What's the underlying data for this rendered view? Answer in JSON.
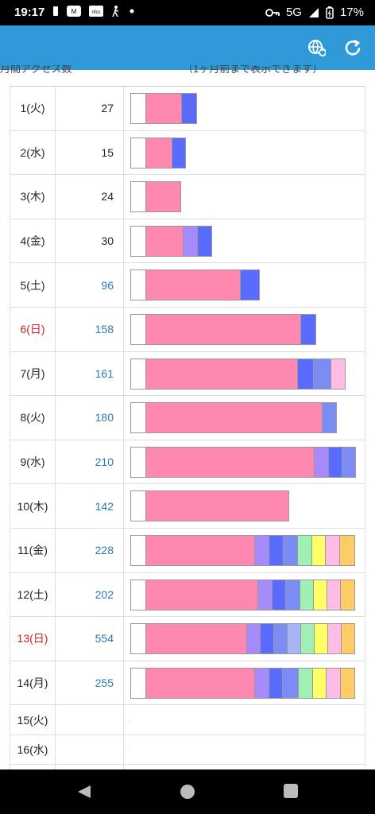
{
  "status_bar": {
    "time": "19:17",
    "network": "5G",
    "battery": "17%",
    "left_icons": [
      "notification-icon",
      "app-icon",
      "app-icon",
      "walk-icon",
      "dot-icon"
    ],
    "right_icons": [
      "key-icon",
      "signal-icon",
      "battery-icon"
    ]
  },
  "app_bar": {
    "color": "#2e9bd8",
    "actions": [
      "globe-refresh-icon",
      "reload-icon"
    ]
  },
  "header_strip": {
    "left_text": "月間アクセス数",
    "right_text": "（1ヶ月前まで表示できます）"
  },
  "segment_colors": {
    "white": "#ffffff",
    "pink": "#ff88b0",
    "violet": "#a78bfa",
    "blue": "#5a6bff",
    "periwinkle": "#7b8cf5",
    "lavender": "#a9b4f5",
    "mint": "#9ff0b4",
    "yellow": "#ffff66",
    "light-pink": "#ffbde6",
    "orange": "#ffcc66"
  },
  "rows": [
    {
      "day": "1(火)",
      "count": "27",
      "is_link": false,
      "is_sunday": false,
      "segments": [
        [
          "white",
          20
        ],
        [
          "pink",
          46
        ],
        [
          "blue",
          20
        ]
      ]
    },
    {
      "day": "2(水)",
      "count": "15",
      "is_link": false,
      "is_sunday": false,
      "segments": [
        [
          "white",
          20
        ],
        [
          "pink",
          34
        ],
        [
          "blue",
          18
        ]
      ]
    },
    {
      "day": "3(木)",
      "count": "24",
      "is_link": false,
      "is_sunday": false,
      "segments": [
        [
          "white",
          20
        ],
        [
          "pink",
          45
        ]
      ]
    },
    {
      "day": "4(金)",
      "count": "30",
      "is_link": false,
      "is_sunday": false,
      "segments": [
        [
          "white",
          20
        ],
        [
          "pink",
          48
        ],
        [
          "violet",
          19
        ],
        [
          "blue",
          19
        ]
      ]
    },
    {
      "day": "5(土)",
      "count": "96",
      "is_link": true,
      "is_sunday": false,
      "segments": [
        [
          "white",
          20
        ],
        [
          "pink",
          120
        ],
        [
          "blue",
          25
        ]
      ]
    },
    {
      "day": "6(日)",
      "count": "158",
      "is_link": true,
      "is_sunday": true,
      "segments": [
        [
          "white",
          20
        ],
        [
          "pink",
          196
        ],
        [
          "blue",
          20
        ]
      ]
    },
    {
      "day": "7(月)",
      "count": "161",
      "is_link": true,
      "is_sunday": false,
      "segments": [
        [
          "white",
          20
        ],
        [
          "pink",
          192
        ],
        [
          "blue",
          21
        ],
        [
          "periwinkle",
          23
        ],
        [
          "light-pink",
          19
        ]
      ]
    },
    {
      "day": "8(火)",
      "count": "180",
      "is_link": true,
      "is_sunday": false,
      "segments": [
        [
          "white",
          20
        ],
        [
          "pink",
          223
        ],
        [
          "periwinkle",
          19
        ]
      ]
    },
    {
      "day": "9(水)",
      "count": "210",
      "is_link": true,
      "is_sunday": false,
      "segments": [
        [
          "white",
          20
        ],
        [
          "pink",
          213
        ],
        [
          "violet",
          19
        ],
        [
          "blue",
          18
        ],
        [
          "periwinkle",
          18
        ]
      ]
    },
    {
      "day": "10(木)",
      "count": "142",
      "is_link": true,
      "is_sunday": false,
      "segments": [
        [
          "white",
          20
        ],
        [
          "pink",
          181
        ]
      ]
    },
    {
      "day": "11(金)",
      "count": "228",
      "is_link": true,
      "is_sunday": false,
      "segments": [
        [
          "white",
          20
        ],
        [
          "pink",
          138
        ],
        [
          "violet",
          19
        ],
        [
          "blue",
          19
        ],
        [
          "periwinkle",
          19
        ],
        [
          "mint",
          19
        ],
        [
          "yellow",
          18
        ],
        [
          "light-pink",
          19
        ],
        [
          "orange",
          20
        ]
      ]
    },
    {
      "day": "12(土)",
      "count": "202",
      "is_link": true,
      "is_sunday": false,
      "segments": [
        [
          "white",
          20
        ],
        [
          "pink",
          142
        ],
        [
          "violet",
          19
        ],
        [
          "blue",
          18
        ],
        [
          "periwinkle",
          19
        ],
        [
          "mint",
          18
        ],
        [
          "yellow",
          18
        ],
        [
          "light-pink",
          18
        ],
        [
          "orange",
          19
        ]
      ]
    },
    {
      "day": "13(日)",
      "count": "554",
      "is_link": true,
      "is_sunday": true,
      "segments": [
        [
          "white",
          20
        ],
        [
          "pink",
          128
        ],
        [
          "violet",
          18
        ],
        [
          "blue",
          18
        ],
        [
          "periwinkle",
          18
        ],
        [
          "lavender",
          18
        ],
        [
          "mint",
          18
        ],
        [
          "yellow",
          18
        ],
        [
          "light-pink",
          18
        ],
        [
          "orange",
          18
        ]
      ]
    },
    {
      "day": "14(月)",
      "count": "255",
      "is_link": true,
      "is_sunday": false,
      "segments": [
        [
          "white",
          20
        ],
        [
          "pink",
          138
        ],
        [
          "violet",
          19
        ],
        [
          "blue",
          18
        ],
        [
          "periwinkle",
          21
        ],
        [
          "mint",
          19
        ],
        [
          "yellow",
          18
        ],
        [
          "light-pink",
          19
        ],
        [
          "orange",
          19
        ]
      ]
    },
    {
      "day": "15(火)",
      "count": "",
      "is_link": false,
      "is_sunday": false,
      "segments": []
    },
    {
      "day": "16(水)",
      "count": "",
      "is_link": false,
      "is_sunday": false,
      "segments": []
    },
    {
      "day": "",
      "count": "",
      "is_link": false,
      "is_sunday": false,
      "segments": []
    }
  ],
  "nav_bar": {
    "buttons": [
      "back-icon",
      "home-icon",
      "recents-icon"
    ]
  }
}
